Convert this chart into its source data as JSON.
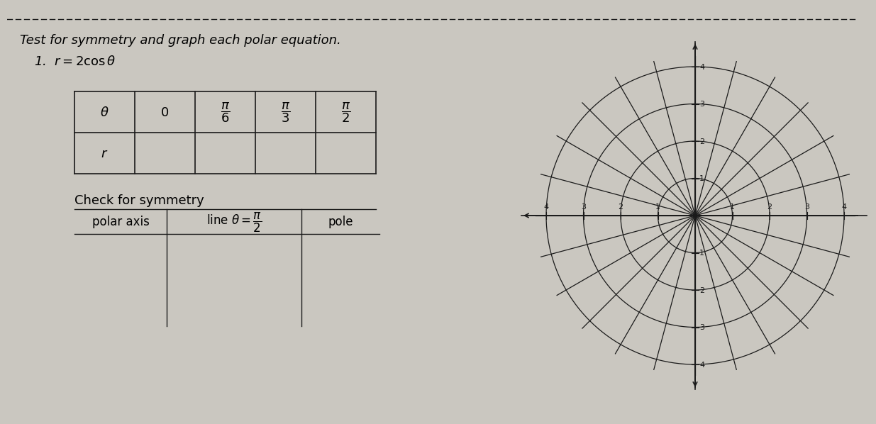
{
  "title": "Test for symmetry and graph each polar equation.",
  "equation_label": "1.  $r = 2\\cos\\theta$",
  "table_theta_labels": [
    "$\\theta$",
    "0",
    "$\\dfrac{\\pi}{6}$",
    "$\\dfrac{\\pi}{3}$",
    "$\\dfrac{\\pi}{2}$"
  ],
  "table_r_label": "$r$",
  "check_symmetry_label": "Check for symmetry",
  "col_labels": [
    "polar axis",
    "line $\\theta = \\dfrac{\\pi}{2}$",
    "pole"
  ],
  "bg_color": "#cac7c0",
  "line_color": "#1a1a1a",
  "polar_max_r": 4,
  "title_fontsize": 13,
  "eq_fontsize": 13,
  "table_fontsize": 13,
  "sym_fontsize": 12,
  "small_fontsize": 8
}
